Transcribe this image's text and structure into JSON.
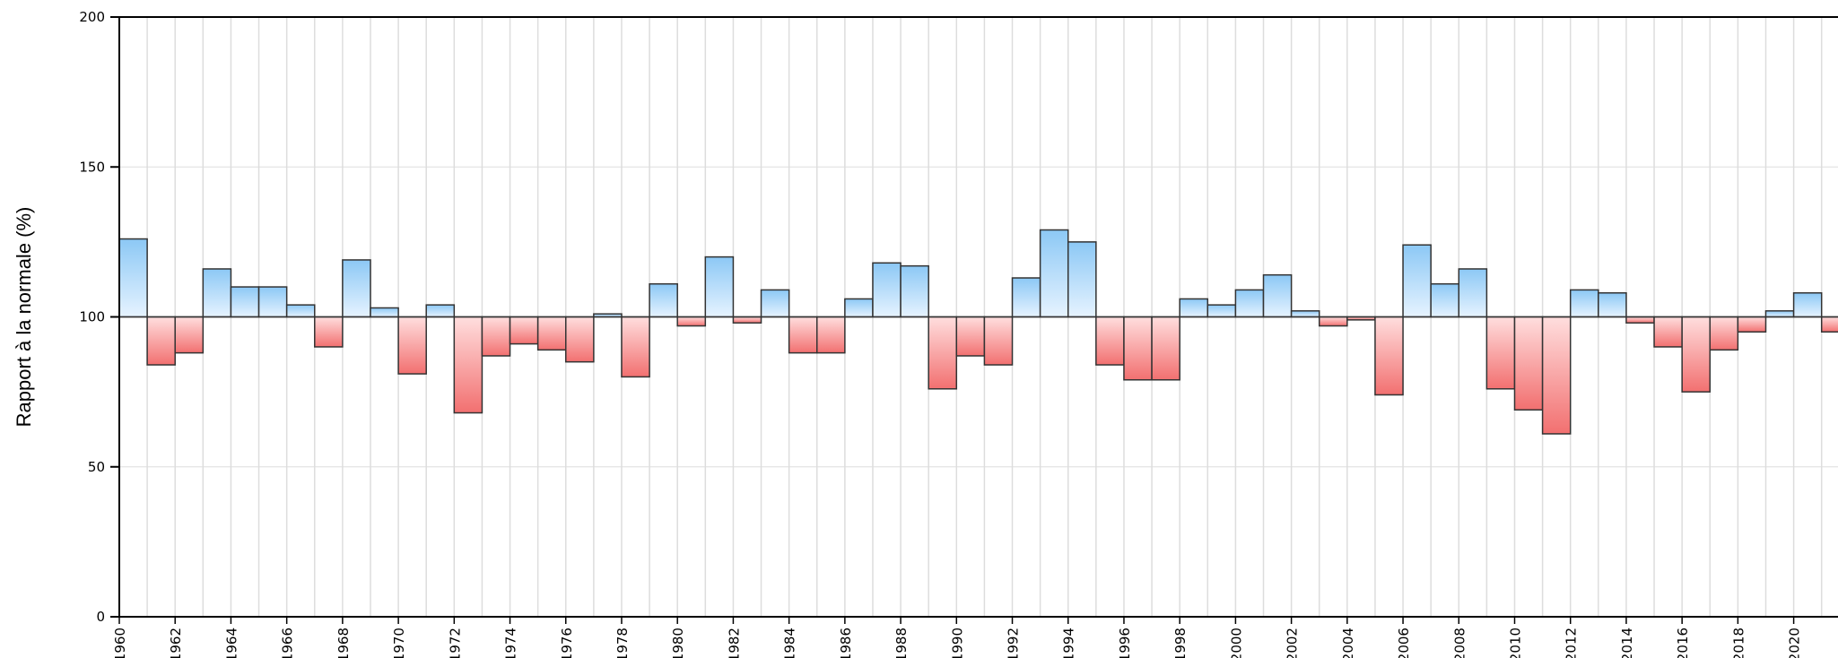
{
  "chart_data": {
    "type": "bar",
    "baseline": 100,
    "ylabel": "Rapport à la normale (%)",
    "ylim": [
      0,
      200
    ],
    "yticks": [
      0,
      50,
      100,
      150,
      200
    ],
    "x_start": 1960,
    "x_end": 2021,
    "xtick_step": 2,
    "xticks": [
      "1960",
      "1962",
      "1964",
      "1966",
      "1968",
      "1970",
      "1972",
      "1974",
      "1976",
      "1978",
      "1980",
      "1982",
      "1984",
      "1986",
      "1988",
      "1990",
      "1992",
      "1994",
      "1996",
      "1998",
      "2000",
      "2002",
      "2004",
      "2006",
      "2008",
      "2010",
      "2012",
      "2014",
      "2016",
      "2018",
      "2020"
    ],
    "years": [
      1960,
      1961,
      1962,
      1963,
      1964,
      1965,
      1966,
      1967,
      1968,
      1969,
      1970,
      1971,
      1972,
      1973,
      1974,
      1975,
      1976,
      1977,
      1978,
      1979,
      1980,
      1981,
      1982,
      1983,
      1984,
      1985,
      1986,
      1987,
      1988,
      1989,
      1990,
      1991,
      1992,
      1993,
      1994,
      1995,
      1996,
      1997,
      1998,
      1999,
      2000,
      2001,
      2002,
      2003,
      2004,
      2005,
      2006,
      2007,
      2008,
      2009,
      2010,
      2011,
      2012,
      2013,
      2014,
      2015,
      2016,
      2017,
      2018,
      2019,
      2020,
      2021
    ],
    "values": [
      126,
      84,
      88,
      116,
      110,
      110,
      104,
      90,
      119,
      103,
      81,
      104,
      68,
      87,
      91,
      89,
      85,
      101,
      80,
      111,
      97,
      120,
      98,
      109,
      88,
      88,
      106,
      118,
      117,
      76,
      87,
      84,
      113,
      129,
      125,
      84,
      79,
      79,
      106,
      104,
      109,
      114,
      102,
      97,
      99,
      74,
      124,
      111,
      116,
      76,
      69,
      61,
      109,
      108,
      98,
      90,
      75,
      89,
      95,
      102,
      108,
      95
    ],
    "grid": true,
    "colors": {
      "above_light": "#e6f3ff",
      "above_dark": "#8cc8f5",
      "below_light": "#ffdede",
      "below_dark": "#f27070",
      "bar_stroke": "#333333",
      "grid": "#dddddd",
      "axis": "#000000"
    }
  }
}
